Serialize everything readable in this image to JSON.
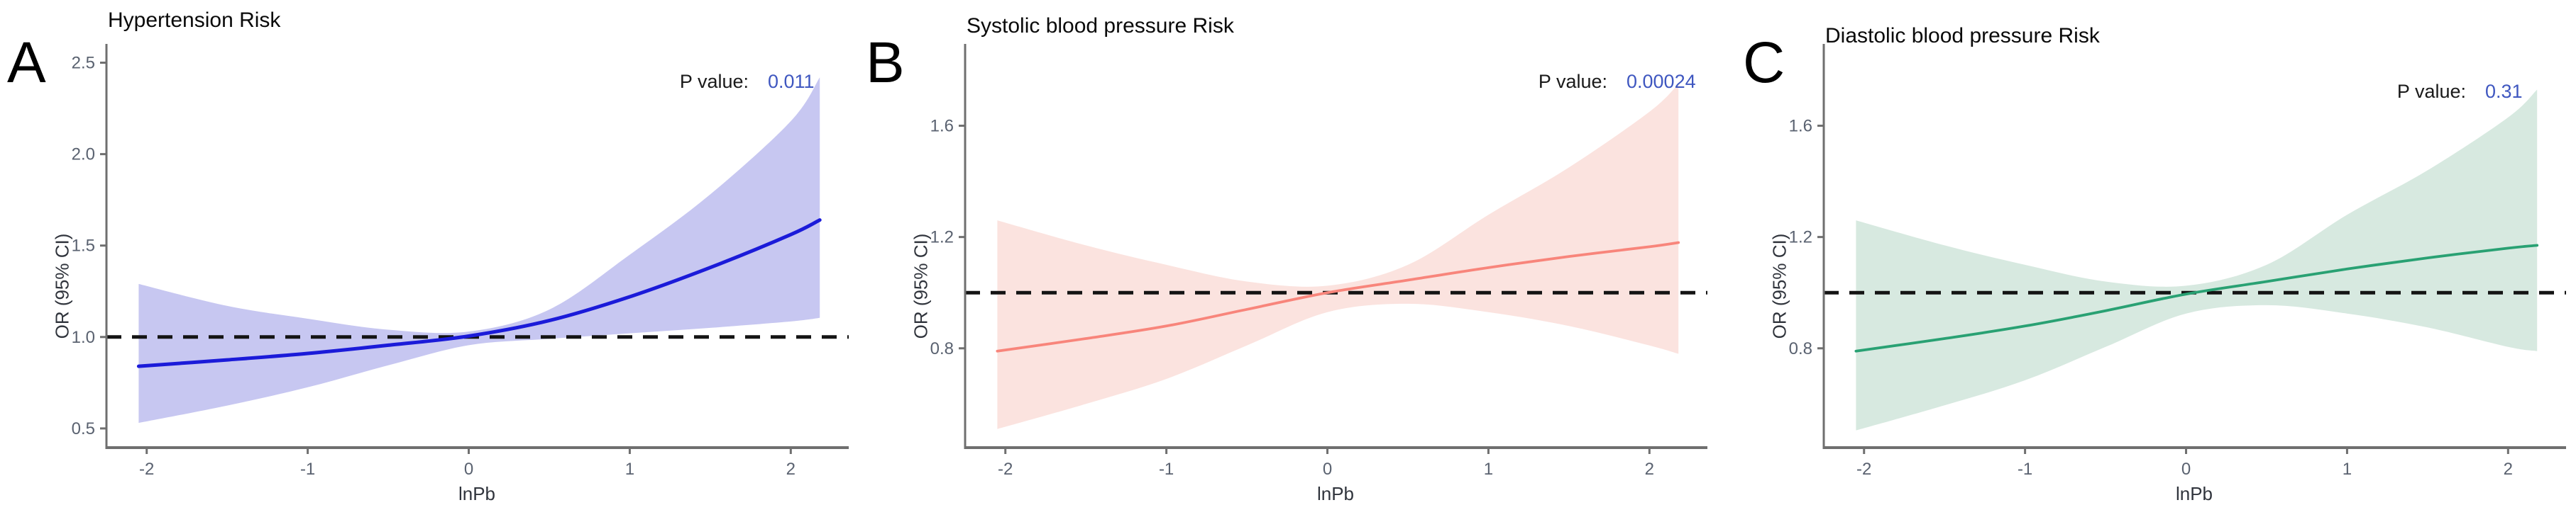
{
  "panels": [
    {
      "label": "A",
      "title": "Hypertension Risk",
      "p_label": "P value:",
      "p_value": "0.011",
      "xlabel": "lnPb",
      "ylabel": "OR (95% CI)"
    },
    {
      "label": "B",
      "title": "Systolic blood pressure Risk",
      "p_label": "P value:",
      "p_value": "0.00024",
      "xlabel": "lnPb",
      "ylabel": "OR (95% CI)"
    },
    {
      "label": "C",
      "title": "Diastolic blood pressure Risk",
      "p_label": "P value:",
      "p_value": "0.31",
      "xlabel": "lnPb",
      "ylabel": "OR (95% CI)"
    }
  ],
  "chart_data": [
    {
      "type": "line",
      "title": "Hypertension Risk",
      "xlabel": "lnPb",
      "ylabel": "OR (95% CI)",
      "p_value": 0.011,
      "x": [
        -2.05,
        -1.5,
        -1.0,
        -0.5,
        0.0,
        0.5,
        1.0,
        1.5,
        2.0,
        2.18
      ],
      "series": [
        {
          "name": "OR",
          "values": [
            0.84,
            0.875,
            0.91,
            0.955,
            1.005,
            1.09,
            1.22,
            1.38,
            1.56,
            1.64
          ]
        },
        {
          "name": "upper_95ci",
          "values": [
            1.29,
            1.17,
            1.1,
            1.04,
            1.03,
            1.15,
            1.45,
            1.78,
            2.18,
            2.42
          ]
        },
        {
          "name": "lower_95ci",
          "values": [
            0.53,
            0.625,
            0.725,
            0.845,
            0.955,
            0.99,
            1.02,
            1.05,
            1.085,
            1.105
          ]
        }
      ],
      "reference_line_y": 1.0,
      "xticks": [
        -2,
        -1,
        0,
        1,
        2
      ],
      "xtick_labels": [
        "-2",
        "-1",
        "0",
        "1",
        "2"
      ],
      "yticks": [
        0.5,
        1.0,
        1.5,
        2.0,
        2.5
      ],
      "ytick_labels": [
        "0.5",
        "1.0",
        "1.5",
        "2.0",
        "2.5"
      ],
      "xlim": [
        -2.25,
        2.36
      ],
      "ylim": [
        0.395,
        2.595
      ],
      "legend": "none",
      "grid": false,
      "line_color": "#1b1bd9",
      "band_color": "#c7c7f1"
    },
    {
      "type": "line",
      "title": "Systolic blood pressure Risk",
      "xlabel": "lnPb",
      "ylabel": "OR (95% CI)",
      "p_value": 0.00024,
      "x": [
        -2.05,
        -1.5,
        -1.0,
        -0.5,
        0.0,
        0.5,
        1.0,
        1.5,
        2.0,
        2.18
      ],
      "series": [
        {
          "name": "OR",
          "values": [
            0.79,
            0.835,
            0.88,
            0.94,
            1.0,
            1.045,
            1.09,
            1.13,
            1.165,
            1.18
          ]
        },
        {
          "name": "upper_95ci",
          "values": [
            1.26,
            1.17,
            1.1,
            1.04,
            1.025,
            1.1,
            1.28,
            1.45,
            1.65,
            1.75
          ]
        },
        {
          "name": "lower_95ci",
          "values": [
            0.51,
            0.6,
            0.69,
            0.81,
            0.93,
            0.96,
            0.93,
            0.88,
            0.81,
            0.78
          ]
        }
      ],
      "reference_line_y": 1.0,
      "xticks": [
        -2,
        -1,
        0,
        1,
        2
      ],
      "xtick_labels": [
        "-2",
        "-1",
        "0",
        "1",
        "2"
      ],
      "yticks": [
        0.8,
        1.2,
        1.6
      ],
      "ytick_labels": [
        "0.8",
        "1.2",
        "1.6"
      ],
      "xlim": [
        -2.25,
        2.36
      ],
      "ylim": [
        0.443,
        1.889
      ],
      "legend": "none",
      "grid": false,
      "line_color": "#f8857b",
      "band_color": "#fbe3df"
    },
    {
      "type": "line",
      "title": "Diastolic blood pressure Risk",
      "xlabel": "lnPb",
      "ylabel": "OR (95% CI)",
      "p_value": 0.31,
      "x": [
        -2.05,
        -1.5,
        -1.0,
        -0.5,
        0.0,
        0.5,
        1.0,
        1.5,
        2.0,
        2.18
      ],
      "series": [
        {
          "name": "OR",
          "values": [
            0.79,
            0.835,
            0.88,
            0.935,
            0.995,
            1.04,
            1.085,
            1.125,
            1.16,
            1.17
          ]
        },
        {
          "name": "upper_95ci",
          "values": [
            1.26,
            1.17,
            1.1,
            1.04,
            1.025,
            1.1,
            1.28,
            1.44,
            1.63,
            1.73
          ]
        },
        {
          "name": "lower_95ci",
          "values": [
            0.505,
            0.595,
            0.685,
            0.805,
            0.925,
            0.955,
            0.925,
            0.875,
            0.805,
            0.79
          ]
        }
      ],
      "reference_line_y": 1.0,
      "xticks": [
        -2,
        -1,
        0,
        1,
        2
      ],
      "xtick_labels": [
        "-2",
        "-1",
        "0",
        "1",
        "2"
      ],
      "yticks": [
        0.8,
        1.2,
        1.6
      ],
      "ytick_labels": [
        "0.8",
        "1.2",
        "1.6"
      ],
      "xlim": [
        -2.25,
        2.36
      ],
      "ylim": [
        0.443,
        1.889
      ],
      "legend": "none",
      "grid": false,
      "line_color": "#29a173",
      "band_color": "#d7e9e0"
    }
  ],
  "styles": {
    "reference_line_color": "#141414",
    "axis_color": "#6f6f6f",
    "tick_label_color": "#5a6270",
    "p_value_color": "#3f57c0",
    "title_color": "#0a0a0a"
  }
}
